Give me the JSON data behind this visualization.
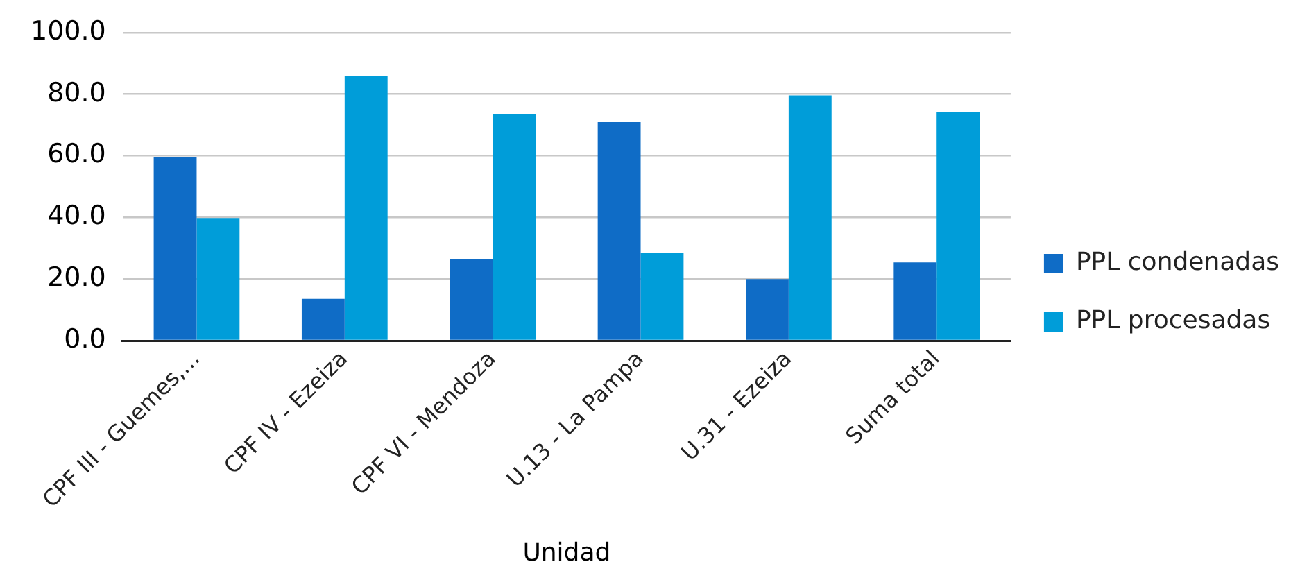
{
  "chart_data": {
    "type": "bar",
    "xlabel": "Unidad",
    "categories": [
      "CPF III - Guemes,...",
      "CPF IV - Ezeiza",
      "CPF VI - Mendoza",
      "U.13 - La Pampa",
      "U.31 - Ezeiza",
      "Suma total"
    ],
    "series": [
      {
        "name": "PPL condenadas",
        "color": "#0f6cc6",
        "values": [
          59.6,
          13.6,
          26.4,
          70.9,
          20.0,
          25.4
        ]
      },
      {
        "name": "PPL procesadas",
        "color": "#009dd9",
        "values": [
          39.8,
          85.9,
          73.6,
          28.6,
          79.6,
          74.1
        ]
      }
    ],
    "ylim": [
      0,
      100
    ],
    "yticks": [
      {
        "value": 0,
        "label": "0.0"
      },
      {
        "value": 20,
        "label": "20.0"
      },
      {
        "value": 40,
        "label": "40.0"
      },
      {
        "value": 60,
        "label": "60.0"
      },
      {
        "value": 80,
        "label": "80.0"
      },
      {
        "value": 100,
        "label": "100.0"
      }
    ],
    "grid": "y",
    "legend": "right"
  }
}
